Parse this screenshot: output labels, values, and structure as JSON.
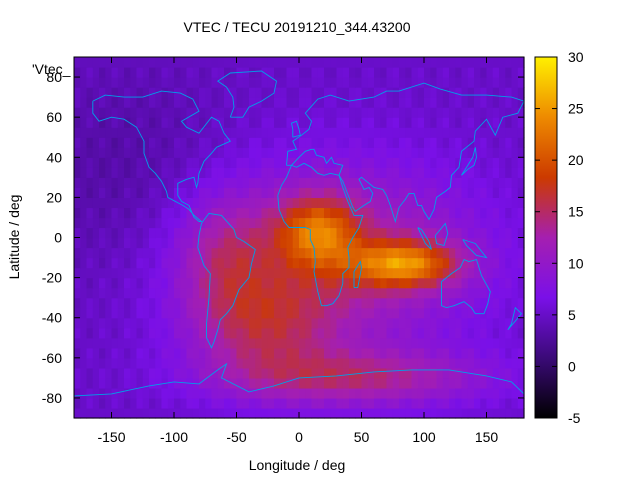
{
  "chart_data": {
    "type": "heatmap",
    "title": "VTEC / TECU 20191210_344.43200",
    "xlabel": "Longitude / deg",
    "ylabel": "Latitude / deg",
    "xlim": [
      -180,
      180
    ],
    "ylim": [
      -90,
      90
    ],
    "xticks": [
      -150,
      -100,
      -50,
      0,
      50,
      100,
      150
    ],
    "yticks": [
      -80,
      -60,
      -40,
      -20,
      0,
      20,
      40,
      60,
      80
    ],
    "legend_label": "'Vtec_",
    "colorbar": {
      "range": [
        -5,
        30
      ],
      "ticks": [
        -5,
        0,
        5,
        10,
        15,
        20,
        25,
        30
      ],
      "palette": [
        "#000000",
        "#3b0a78",
        "#7a10e8",
        "#a51fb0",
        "#cc3a00",
        "#ee8a00",
        "#fff000"
      ]
    },
    "coastline_color": "#00a0e8",
    "features": [
      {
        "name": "equatorial-anomaly-africa",
        "lon": 10,
        "lat": 2,
        "value": 27
      },
      {
        "name": "equatorial-anomaly-indian-ocean",
        "lon": 80,
        "lat": -14,
        "value": 29
      },
      {
        "name": "south-atlantic-high",
        "lon": -20,
        "lat": -45,
        "value": 15
      },
      {
        "name": "southern-ocean-band",
        "lon": 40,
        "lat": -70,
        "value": 16
      },
      {
        "name": "pacific-background",
        "lon": -140,
        "lat": 0,
        "value": 5
      },
      {
        "name": "polar-north",
        "lon": 0,
        "lat": 80,
        "value": 4
      }
    ]
  }
}
